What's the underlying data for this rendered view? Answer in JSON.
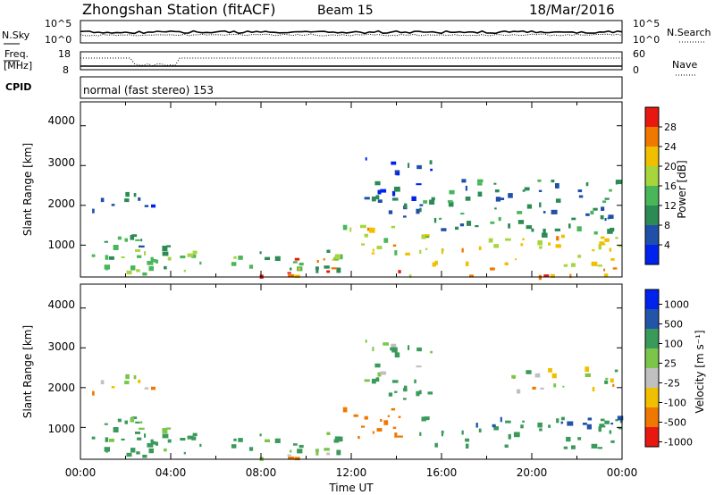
{
  "header": {
    "station": "Zhongshan Station (fitACF)",
    "beam": "Beam 15",
    "date": "18/Mar/2016"
  },
  "aux_panels": {
    "nsky_label": "N.Sky",
    "nsky_ticks": [
      "10^5",
      "10^0"
    ],
    "nsearch_label": "N.Search",
    "nsearch_ticks": [
      "10^5",
      "10^0"
    ],
    "freq_label": "Freq.",
    "freq_unit": "[MHz]",
    "freq_ticks": [
      "18",
      "8"
    ],
    "nave_label": "Nave",
    "nave_ticks": [
      "60",
      "0"
    ],
    "cpid_label": "CPID",
    "cpid_text": "normal (fast stereo) 153"
  },
  "power_panel": {
    "ylabel": "Slant Range [km]",
    "yticks": [
      "4000",
      "3000",
      "2000",
      "1000"
    ],
    "colorbar_label": "Power [dB]",
    "colorbar_ticks": [
      "28",
      "24",
      "20",
      "16",
      "12",
      "8",
      "4"
    ],
    "colors": [
      "#0022ee",
      "#1f4fa8",
      "#2c8a55",
      "#49b65a",
      "#a6d63c",
      "#f0c000",
      "#f07800",
      "#e81810"
    ]
  },
  "velocity_panel": {
    "ylabel": "Slant Range [km]",
    "yticks": [
      "4000",
      "3000",
      "2000",
      "1000"
    ],
    "colorbar_label": "Velocity [m s⁻¹]",
    "colorbar_ticks": [
      "1000",
      "500",
      "100",
      "25",
      "-25",
      "-100",
      "-500",
      "-1000"
    ],
    "colors": [
      "#0022ee",
      "#2255aa",
      "#3a9a5a",
      "#7bc64a",
      "#c0c0c0",
      "#f0c000",
      "#f07800",
      "#e81810"
    ]
  },
  "xaxis": {
    "label": "Time UT",
    "ticks": [
      "00:00",
      "04:00",
      "08:00",
      "12:00",
      "16:00",
      "20:00",
      "00:00"
    ]
  },
  "chart_data": [
    {
      "type": "heatmap",
      "title": "Zhongshan Station (fitACF) Beam 15",
      "xlabel": "Time UT",
      "ylabel": "Slant Range [km]",
      "xlim": [
        "00:00",
        "24:00"
      ],
      "ylim": [
        200,
        4600
      ],
      "colorbar": "Power [dB]",
      "clim": [
        0,
        32
      ],
      "blobs": [
        {
          "t0": 0.0,
          "t1": 4.5,
          "r0": 300,
          "r1": 1300,
          "level": 12
        },
        {
          "t0": 0.2,
          "t1": 3.5,
          "r0": 1850,
          "r1": 2350,
          "level": 8
        },
        {
          "t0": 2.0,
          "t1": 11.5,
          "r0": 300,
          "r1": 900,
          "level": 14
        },
        {
          "t0": 5.5,
          "t1": 11.0,
          "r0": 250,
          "r1": 400,
          "level": 28
        },
        {
          "t0": 9.0,
          "t1": 11.5,
          "r0": 400,
          "r1": 800,
          "level": 26
        },
        {
          "t0": 11.5,
          "t1": 14.5,
          "r0": 700,
          "r1": 1600,
          "level": 20
        },
        {
          "t0": 12.5,
          "t1": 15.5,
          "r0": 1700,
          "r1": 3300,
          "level": 6
        },
        {
          "t0": 15.0,
          "t1": 24.0,
          "r0": 500,
          "r1": 1300,
          "level": 20
        },
        {
          "t0": 15.0,
          "t1": 24.0,
          "r0": 1300,
          "r1": 2700,
          "level": 10
        },
        {
          "t0": 14.0,
          "t1": 24.0,
          "r0": 250,
          "r1": 450,
          "level": 24
        }
      ]
    },
    {
      "type": "heatmap",
      "title": "",
      "xlabel": "Time UT",
      "ylabel": "Slant Range [km]",
      "xlim": [
        "00:00",
        "24:00"
      ],
      "ylim": [
        200,
        4600
      ],
      "colorbar": "Velocity [m s⁻¹]",
      "clim": [
        -1000,
        1000
      ],
      "blobs": [
        {
          "t0": 0.0,
          "t1": 4.5,
          "r0": 300,
          "r1": 1300,
          "level": 150
        },
        {
          "t0": 0.2,
          "t1": 3.5,
          "r0": 1850,
          "r1": 2350,
          "level": 0
        },
        {
          "t0": 2.0,
          "t1": 11.5,
          "r0": 300,
          "r1": 900,
          "level": 200
        },
        {
          "t0": 5.5,
          "t1": 11.0,
          "r0": 250,
          "r1": 400,
          "level": -100
        },
        {
          "t0": 11.5,
          "t1": 14.5,
          "r0": 700,
          "r1": 1600,
          "level": -300
        },
        {
          "t0": 12.5,
          "t1": 15.5,
          "r0": 1700,
          "r1": 3300,
          "level": 150
        },
        {
          "t0": 15.0,
          "t1": 24.0,
          "r0": 500,
          "r1": 1300,
          "level": 250
        },
        {
          "t0": 19.0,
          "t1": 24.0,
          "r0": 1900,
          "r1": 2600,
          "level": 0
        },
        {
          "t0": 17.0,
          "t1": 24.0,
          "r0": 1050,
          "r1": 1300,
          "level": 700
        }
      ]
    }
  ]
}
